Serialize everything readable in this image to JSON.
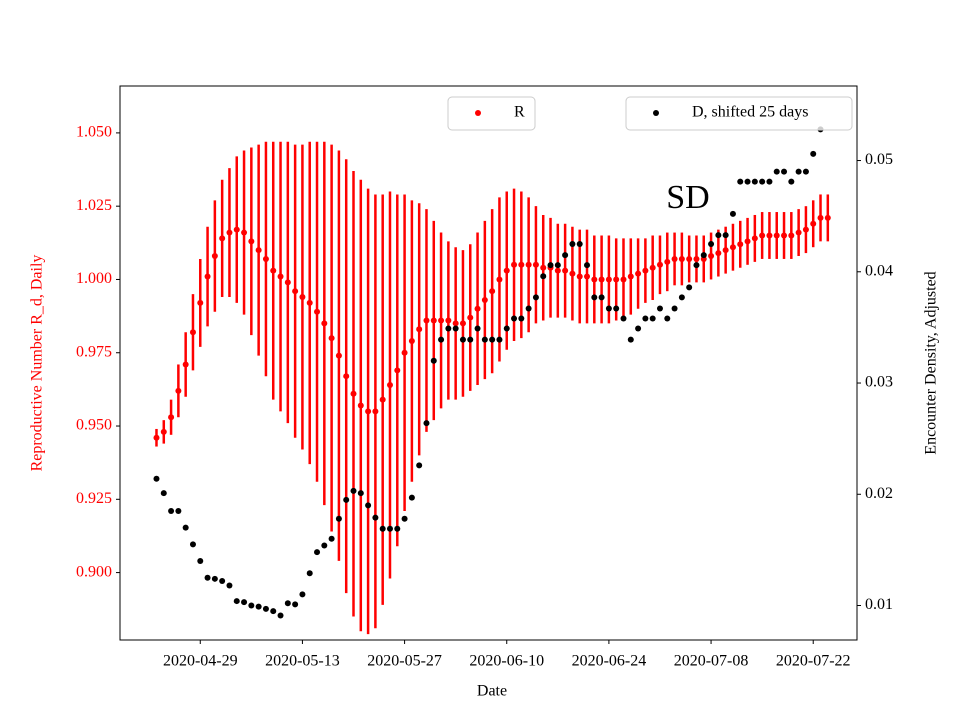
{
  "chart_data": {
    "type": "scatter",
    "xlabel": "Date",
    "ylabel": "Reproductive Number R_d, Daily",
    "y2label": "Encounter Density, Adjusted",
    "annotation": "SD",
    "x": [
      "2020-04-23",
      "2020-04-24",
      "2020-04-25",
      "2020-04-26",
      "2020-04-27",
      "2020-04-28",
      "2020-04-29",
      "2020-04-30",
      "2020-05-01",
      "2020-05-02",
      "2020-05-03",
      "2020-05-04",
      "2020-05-05",
      "2020-05-06",
      "2020-05-07",
      "2020-05-08",
      "2020-05-09",
      "2020-05-10",
      "2020-05-11",
      "2020-05-12",
      "2020-05-13",
      "2020-05-14",
      "2020-05-15",
      "2020-05-16",
      "2020-05-17",
      "2020-05-18",
      "2020-05-19",
      "2020-05-20",
      "2020-05-21",
      "2020-05-22",
      "2020-05-23",
      "2020-05-24",
      "2020-05-25",
      "2020-05-26",
      "2020-05-27",
      "2020-05-28",
      "2020-05-29",
      "2020-05-30",
      "2020-05-31",
      "2020-06-01",
      "2020-06-02",
      "2020-06-03",
      "2020-06-04",
      "2020-06-05",
      "2020-06-06",
      "2020-06-07",
      "2020-06-08",
      "2020-06-09",
      "2020-06-10",
      "2020-06-11",
      "2020-06-12",
      "2020-06-13",
      "2020-06-14",
      "2020-06-15",
      "2020-06-16",
      "2020-06-17",
      "2020-06-18",
      "2020-06-19",
      "2020-06-20",
      "2020-06-21",
      "2020-06-22",
      "2020-06-23",
      "2020-06-24",
      "2020-06-25",
      "2020-06-26",
      "2020-06-27",
      "2020-06-28",
      "2020-06-29",
      "2020-06-30",
      "2020-07-01",
      "2020-07-02",
      "2020-07-03",
      "2020-07-04",
      "2020-07-05",
      "2020-07-06",
      "2020-07-07",
      "2020-07-08",
      "2020-07-09",
      "2020-07-10",
      "2020-07-11",
      "2020-07-12",
      "2020-07-13",
      "2020-07-14",
      "2020-07-15",
      "2020-07-16",
      "2020-07-17",
      "2020-07-18",
      "2020-07-19",
      "2020-07-20",
      "2020-07-21",
      "2020-07-22",
      "2020-07-23",
      "2020-07-24"
    ],
    "xlim": [
      "2020-04-18",
      "2020-07-28"
    ],
    "xticks": [
      "2020-04-29",
      "2020-05-13",
      "2020-05-27",
      "2020-06-10",
      "2020-06-24",
      "2020-07-08",
      "2020-07-22"
    ],
    "ylim": [
      0.877,
      1.066
    ],
    "yticks": [
      {
        "value": 0.9,
        "label": "0.900"
      },
      {
        "value": 0.925,
        "label": "0.925"
      },
      {
        "value": 0.95,
        "label": "0.950"
      },
      {
        "value": 0.975,
        "label": "0.975"
      },
      {
        "value": 1.0,
        "label": "1.000"
      },
      {
        "value": 1.025,
        "label": "1.025"
      },
      {
        "value": 1.05,
        "label": "1.050"
      }
    ],
    "y2lim": [
      0.0069,
      0.0567
    ],
    "y2ticks": [
      0.01,
      0.02,
      0.03,
      0.04,
      0.05
    ],
    "series": [
      {
        "name": "R",
        "color": "#ff0000",
        "values": [
          0.946,
          0.948,
          0.953,
          0.962,
          0.971,
          0.982,
          0.992,
          1.001,
          1.008,
          1.014,
          1.016,
          1.017,
          1.016,
          1.013,
          1.01,
          1.007,
          1.003,
          1.001,
          0.999,
          0.996,
          0.994,
          0.992,
          0.989,
          0.985,
          0.98,
          0.974,
          0.967,
          0.961,
          0.957,
          0.955,
          0.955,
          0.959,
          0.964,
          0.969,
          0.975,
          0.979,
          0.983,
          0.986,
          0.986,
          0.986,
          0.986,
          0.985,
          0.985,
          0.987,
          0.99,
          0.993,
          0.996,
          1.0,
          1.003,
          1.005,
          1.005,
          1.005,
          1.005,
          1.004,
          1.004,
          1.003,
          1.003,
          1.002,
          1.001,
          1.001,
          1.0,
          1.0,
          1.0,
          1.0,
          1.0,
          1.001,
          1.002,
          1.003,
          1.004,
          1.005,
          1.006,
          1.007,
          1.007,
          1.007,
          1.007,
          1.007,
          1.008,
          1.009,
          1.01,
          1.011,
          1.012,
          1.013,
          1.014,
          1.015,
          1.015,
          1.015,
          1.015,
          1.015,
          1.016,
          1.017,
          1.019,
          1.021,
          1.021
        ],
        "errors": [
          0.003,
          0.004,
          0.006,
          0.009,
          0.011,
          0.013,
          0.015,
          0.017,
          0.019,
          0.02,
          0.022,
          0.025,
          0.028,
          0.032,
          0.036,
          0.04,
          0.044,
          0.046,
          0.048,
          0.05,
          0.052,
          0.055,
          0.058,
          0.062,
          0.066,
          0.07,
          0.074,
          0.076,
          0.077,
          0.076,
          0.074,
          0.07,
          0.066,
          0.06,
          0.054,
          0.048,
          0.043,
          0.038,
          0.034,
          0.03,
          0.027,
          0.026,
          0.025,
          0.025,
          0.026,
          0.027,
          0.028,
          0.028,
          0.027,
          0.026,
          0.025,
          0.023,
          0.02,
          0.018,
          0.017,
          0.016,
          0.016,
          0.016,
          0.016,
          0.016,
          0.015,
          0.015,
          0.015,
          0.014,
          0.014,
          0.013,
          0.012,
          0.011,
          0.011,
          0.01,
          0.01,
          0.009,
          0.009,
          0.008,
          0.008,
          0.008,
          0.008,
          0.008,
          0.008,
          0.008,
          0.008,
          0.008,
          0.008,
          0.008,
          0.008,
          0.008,
          0.008,
          0.008,
          0.008,
          0.008,
          0.008,
          0.008,
          0.008
        ]
      },
      {
        "name": "D, shifted 25 days",
        "color": "#000000",
        "axis": "y2",
        "values": [
          0.0214,
          0.0201,
          0.0185,
          0.0185,
          0.017,
          0.0155,
          0.014,
          0.0125,
          0.0124,
          0.0122,
          0.0118,
          0.0104,
          0.0103,
          0.01,
          0.0099,
          0.0097,
          0.0095,
          0.0091,
          0.0102,
          0.0101,
          0.011,
          0.0129,
          0.0148,
          0.0154,
          0.016,
          0.0178,
          0.0195,
          0.0203,
          0.0201,
          0.019,
          0.0179,
          0.0169,
          0.0169,
          0.0169,
          0.0178,
          0.0197,
          0.0226,
          0.0264,
          0.032,
          0.0339,
          0.0349,
          0.0349,
          0.0339,
          0.0339,
          0.0349,
          0.0339,
          0.0339,
          0.0339,
          0.0349,
          0.0358,
          0.0358,
          0.0367,
          0.0377,
          0.0396,
          0.0406,
          0.0406,
          0.0415,
          0.0425,
          0.0425,
          0.0406,
          0.0377,
          0.0377,
          0.0367,
          0.0367,
          0.0358,
          0.0339,
          0.0349,
          0.0358,
          0.0358,
          0.0367,
          0.0358,
          0.0367,
          0.0377,
          0.0386,
          0.0406,
          0.0415,
          0.0425,
          0.0433,
          0.0433,
          0.0452,
          0.0481,
          0.0481,
          0.0481,
          0.0481,
          0.0481,
          0.049,
          0.049,
          0.0481,
          0.049,
          0.049,
          0.0506,
          0.0528,
          null
        ]
      }
    ]
  }
}
